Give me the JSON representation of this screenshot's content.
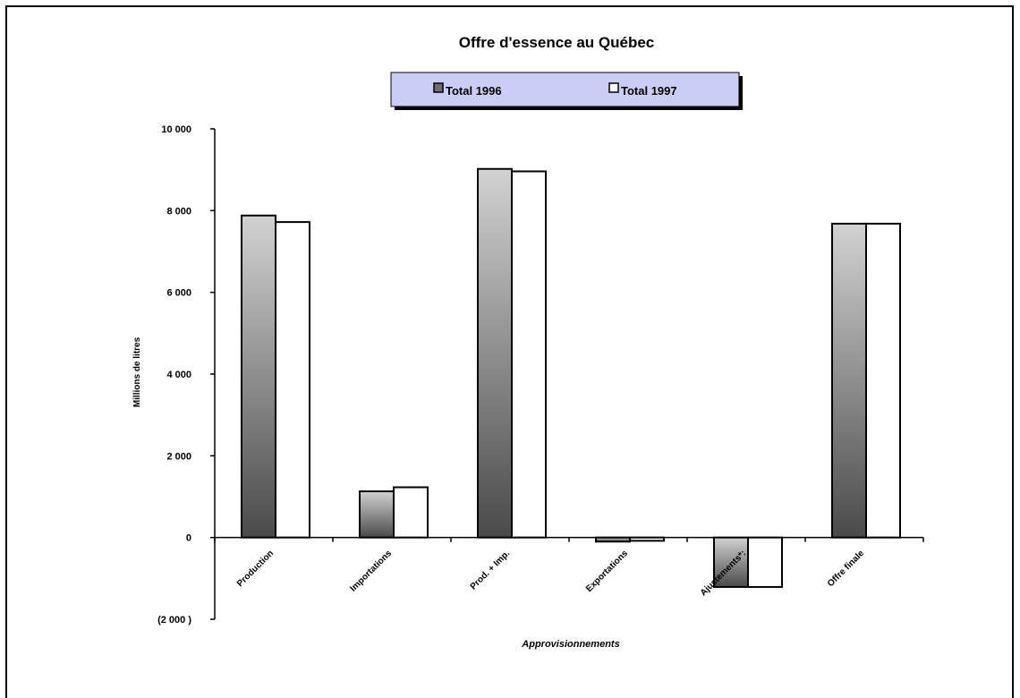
{
  "chart_data": {
    "type": "bar",
    "title": "Offre d'essence au Québec",
    "xlabel": "Approvisionnements",
    "ylabel": "Millions de litres",
    "ylim": [
      -2000,
      10000
    ],
    "ytick_values": [
      -2000,
      0,
      2000,
      4000,
      6000,
      8000,
      10000
    ],
    "ytick_labels": [
      "(2 000   )",
      "0",
      "2 000",
      "4 000",
      "6 000",
      "8 000",
      "10 000"
    ],
    "categories": [
      "Production",
      "Importations",
      "Prod. + Imp.",
      "Exportations",
      "Ajustements*:",
      "Offre finale"
    ],
    "series": [
      {
        "name": "Total 1996",
        "values": [
          7880,
          1130,
          9020,
          -100,
          -1210,
          7680
        ]
      },
      {
        "name": "Total 1997",
        "values": [
          7720,
          1230,
          8960,
          -80,
          -1210,
          7680
        ]
      }
    ],
    "legend_position": "top-center",
    "grid": false
  },
  "colors": {
    "legend_bg": "#cccdf4",
    "series1_gradient_light": "#d2d2d2",
    "series1_gradient_dark": "#4a4a4a",
    "series2_fill": "#ffffff"
  }
}
